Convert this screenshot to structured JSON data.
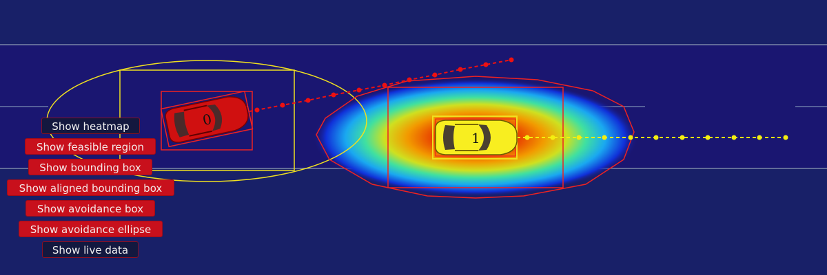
{
  "colors": {
    "background": "#182068",
    "road": "#1a1671",
    "lane_line": "#7a86a8",
    "button_on": "#c8101c",
    "button_off": "#13183f",
    "car0": "#cc0000",
    "car1": "#ffee00",
    "bounding_box": "#ee2222",
    "avoidance": "#ffee22"
  },
  "vehicles": [
    {
      "id": "0",
      "color": "red"
    },
    {
      "id": "1",
      "color": "yellow"
    }
  ],
  "buttons": [
    {
      "key": "heatmap",
      "label": "Show heatmap",
      "active": false
    },
    {
      "key": "feasible_region",
      "label": "Show feasible region",
      "active": true
    },
    {
      "key": "bounding_box",
      "label": "Show bounding box",
      "active": true
    },
    {
      "key": "aligned_bounding_box",
      "label": "Show aligned bounding box",
      "active": true
    },
    {
      "key": "avoidance_box",
      "label": "Show avoidance box",
      "active": true
    },
    {
      "key": "avoidance_ellipse",
      "label": "Show avoidance ellipse",
      "active": true
    },
    {
      "key": "live_data",
      "label": "Show live data",
      "active": false
    }
  ]
}
